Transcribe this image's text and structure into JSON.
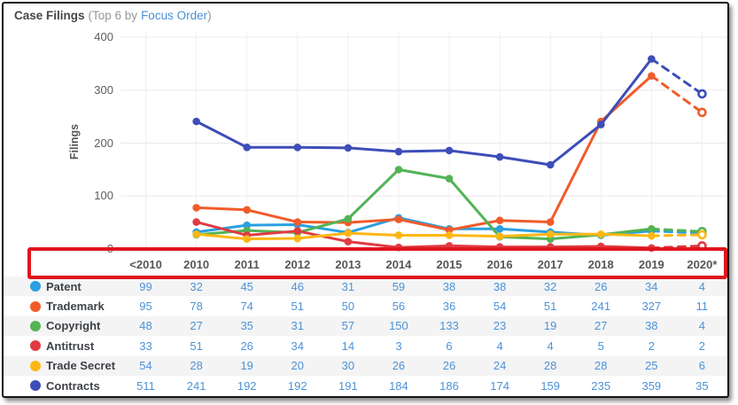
{
  "header": {
    "title": "Case Filings",
    "subtitle_prefix": "(Top 6 by",
    "subtitle_link": "Focus Order",
    "subtitle_suffix": ")"
  },
  "highlight_box": {
    "color": "#E0161F",
    "highlights": "x-axis year header row"
  },
  "table": {
    "columns": [
      "<2010",
      "2010",
      "2011",
      "2012",
      "2013",
      "2014",
      "2015",
      "2016",
      "2017",
      "2018",
      "2019",
      "2020*"
    ]
  },
  "chart_data": {
    "type": "line",
    "title": "Case Filings (Top 6 by Focus Order)",
    "xlabel": "",
    "ylabel": "Filings",
    "ylim": [
      0,
      400
    ],
    "yticks": [
      0,
      100,
      200,
      300,
      400
    ],
    "grid": true,
    "legend_position": "table-left-column",
    "categories": [
      "<2010",
      "2010",
      "2011",
      "2012",
      "2013",
      "2014",
      "2015",
      "2016",
      "2017",
      "2018",
      "2019",
      "2020*"
    ],
    "plotted_note": "solid lines span 2010-2019; 2019 to 2020* drawn dashed with open circle marker (projection); <2010 values and 2020* table values are not plotted",
    "series": [
      {
        "name": "Patent",
        "color": "#2B9FE0",
        "values": [
          99,
          32,
          45,
          46,
          31,
          59,
          38,
          38,
          32,
          26,
          34,
          4
        ],
        "projected_2020": 30
      },
      {
        "name": "Trademark",
        "color": "#F15B2A",
        "values": [
          95,
          78,
          74,
          51,
          50,
          56,
          36,
          54,
          51,
          241,
          327,
          11
        ],
        "projected_2020": 258
      },
      {
        "name": "Copyright",
        "color": "#53B355",
        "values": [
          48,
          27,
          35,
          31,
          57,
          150,
          133,
          23,
          19,
          27,
          38,
          4
        ],
        "projected_2020": 33
      },
      {
        "name": "Antitrust",
        "color": "#E13B42",
        "values": [
          33,
          51,
          26,
          34,
          14,
          3,
          6,
          4,
          4,
          5,
          2,
          2
        ],
        "projected_2020": 6
      },
      {
        "name": "Trade Secret",
        "color": "#FDB714",
        "values": [
          54,
          28,
          19,
          20,
          30,
          26,
          26,
          24,
          28,
          28,
          25,
          6
        ],
        "projected_2020": 27
      },
      {
        "name": "Contracts",
        "color": "#3D4EB8",
        "values": [
          511,
          241,
          192,
          192,
          191,
          184,
          186,
          174,
          159,
          235,
          359,
          35
        ],
        "projected_2020": 293
      }
    ],
    "striped_rows": [
      0,
      2,
      4
    ]
  }
}
